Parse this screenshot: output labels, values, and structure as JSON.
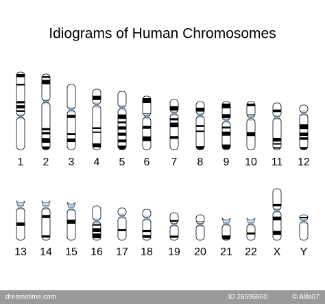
{
  "title": "Idiograms of Human Chromosomes",
  "rows": [
    {
      "labels": [
        "1",
        "2",
        "3",
        "4",
        "5",
        "6",
        "7",
        "8",
        "9",
        "10",
        "11",
        "12"
      ]
    },
    {
      "labels": [
        "13",
        "14",
        "15",
        "16",
        "17",
        "18",
        "19",
        "20",
        "21",
        "22",
        "X",
        "Y"
      ]
    }
  ],
  "footer": {
    "site": "dreamstime.com",
    "id": "ID 26596860",
    "author": "© Alila07"
  }
}
